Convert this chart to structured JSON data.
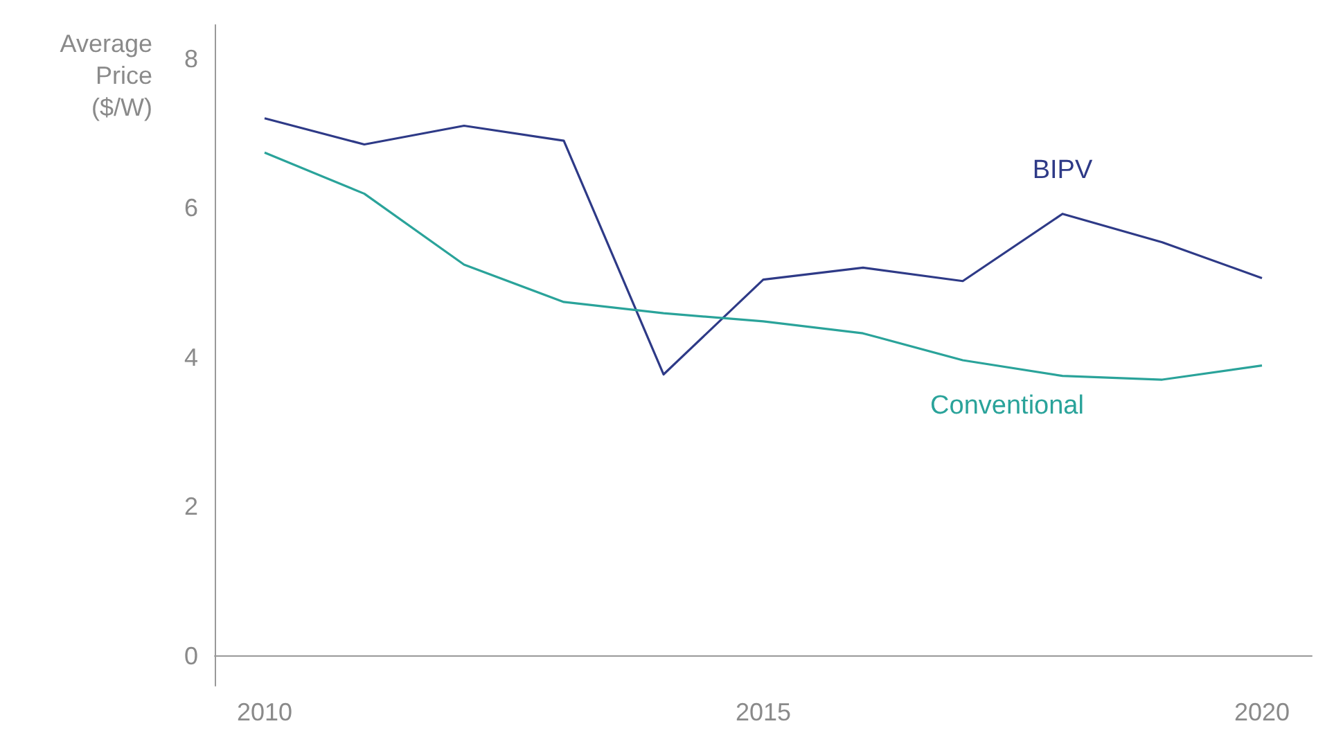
{
  "chart_data": {
    "type": "line",
    "ylabel": "Average\nPrice\n($/W)",
    "x": [
      2010,
      2011,
      2012,
      2013,
      2014,
      2015,
      2016,
      2017,
      2018,
      2019,
      2020
    ],
    "series": [
      {
        "name": "BIPV",
        "color": "#2e3a87",
        "values": [
          7.2,
          6.85,
          7.1,
          6.9,
          3.77,
          5.04,
          5.2,
          5.02,
          5.92,
          5.54,
          5.06
        ]
      },
      {
        "name": "Conventional",
        "color": "#2aa39a",
        "values": [
          6.74,
          6.19,
          5.24,
          4.74,
          4.59,
          4.48,
          4.32,
          3.96,
          3.75,
          3.7,
          3.89
        ]
      }
    ],
    "xlim": [
      2009.5,
      2020.5
    ],
    "xticks": [
      2010,
      2015,
      2020
    ],
    "ylim": [
      -0.4,
      8.45
    ],
    "yticks": [
      0,
      2,
      4,
      6,
      8
    ],
    "grid": false,
    "legend": false,
    "marker": "none",
    "line_style": "solid"
  }
}
